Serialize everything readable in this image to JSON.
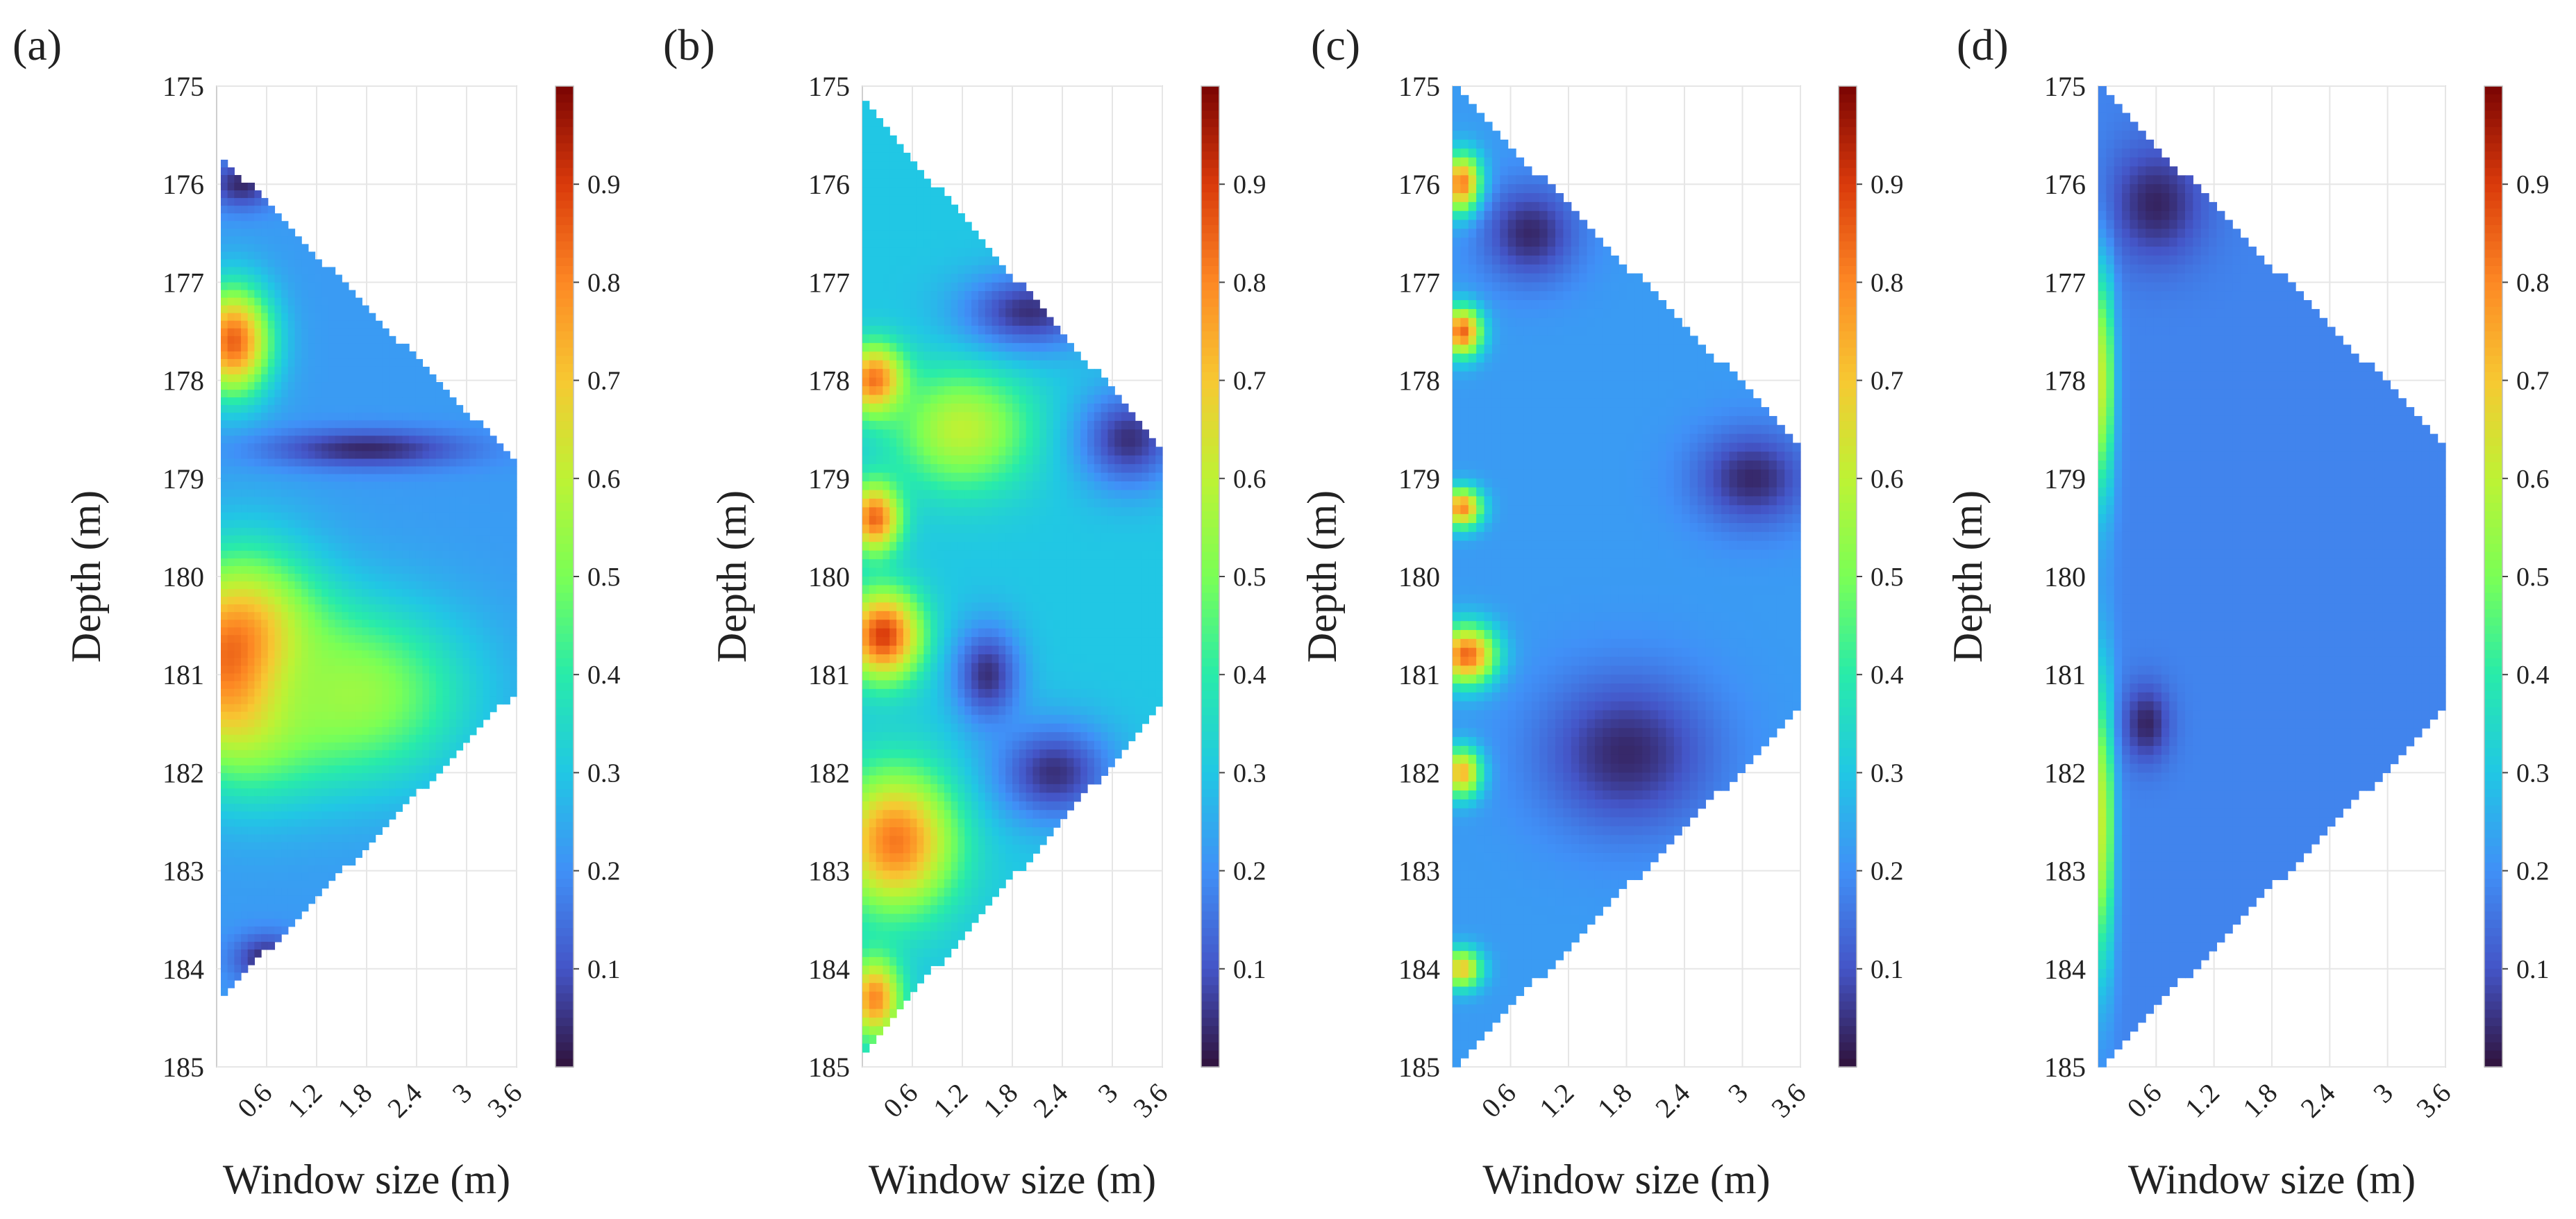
{
  "chart_data": [
    {
      "type": "heatmap",
      "panel_label": "(a)",
      "xlabel": "Window size (m)",
      "ylabel": "Depth (m)",
      "xlim": [
        0,
        3.6
      ],
      "ylim": [
        175,
        185
      ],
      "x_ticks": [
        "0.6",
        "1.2",
        "1.8",
        "2.4",
        "3",
        "3.6"
      ],
      "y_ticks": [
        "175",
        "176",
        "177",
        "178",
        "179",
        "180",
        "181",
        "182",
        "183",
        "184",
        "185"
      ],
      "colorbar_ticks": [
        "0.1",
        "0.2",
        "0.3",
        "0.4",
        "0.5",
        "0.6",
        "0.7",
        "0.8",
        "0.9"
      ],
      "colorbar_range": [
        0,
        1
      ],
      "domain": {
        "x_start": 0.05,
        "depth_top": 175.75,
        "depth_bottom": 184.35,
        "depth_mid": 180.0
      },
      "hotspots": [
        {
          "x": 0.2,
          "depth": 177.6,
          "value": 0.85,
          "sx": 0.45,
          "sd": 0.55
        },
        {
          "x": 0.3,
          "depth": 180.9,
          "value": 0.98,
          "sx": 0.9,
          "sd": 1.0
        },
        {
          "x": 1.6,
          "depth": 181.2,
          "value": 0.55,
          "sx": 1.4,
          "sd": 0.9
        }
      ],
      "base_value": 0.22,
      "low_zones": [
        {
          "x": 0.3,
          "depth": 176.0,
          "sx": 0.4,
          "sd": 0.25
        },
        {
          "x": 1.8,
          "depth": 178.7,
          "sx": 1.2,
          "sd": 0.2
        },
        {
          "x": 0.6,
          "depth": 183.9,
          "sx": 0.4,
          "sd": 0.25
        }
      ]
    },
    {
      "type": "heatmap",
      "panel_label": "(b)",
      "xlabel": "Window size (m)",
      "ylabel": "Depth (m)",
      "xlim": [
        0,
        3.6
      ],
      "ylim": [
        175,
        185
      ],
      "x_ticks": [
        "0.6",
        "1.2",
        "1.8",
        "2.4",
        "3",
        "3.6"
      ],
      "y_ticks": [
        "175",
        "176",
        "177",
        "178",
        "179",
        "180",
        "181",
        "182",
        "183",
        "184",
        "185"
      ],
      "colorbar_ticks": [
        "0.1",
        "0.2",
        "0.3",
        "0.4",
        "0.5",
        "0.6",
        "0.7",
        "0.8",
        "0.9"
      ],
      "colorbar_range": [
        0,
        1
      ],
      "domain": {
        "x_start": 0.0,
        "depth_top": 175.15,
        "depth_bottom": 184.85,
        "depth_mid": 180.0
      },
      "hotspots": [
        {
          "x": 0.15,
          "depth": 178.0,
          "value": 0.85,
          "sx": 0.35,
          "sd": 0.35
        },
        {
          "x": 0.15,
          "depth": 179.4,
          "value": 0.85,
          "sx": 0.3,
          "sd": 0.35
        },
        {
          "x": 0.25,
          "depth": 180.6,
          "value": 0.9,
          "sx": 0.45,
          "sd": 0.45
        },
        {
          "x": 0.4,
          "depth": 182.7,
          "value": 0.82,
          "sx": 0.7,
          "sd": 0.7
        },
        {
          "x": 0.15,
          "depth": 184.3,
          "value": 0.8,
          "sx": 0.3,
          "sd": 0.4
        },
        {
          "x": 1.2,
          "depth": 178.5,
          "value": 0.6,
          "sx": 0.8,
          "sd": 0.6
        }
      ],
      "base_value": 0.3,
      "low_zones": [
        {
          "x": 2.0,
          "depth": 177.3,
          "sx": 0.8,
          "sd": 0.4
        },
        {
          "x": 3.2,
          "depth": 178.6,
          "sx": 0.6,
          "sd": 0.5
        },
        {
          "x": 2.3,
          "depth": 182.0,
          "sx": 0.7,
          "sd": 0.5
        },
        {
          "x": 1.5,
          "depth": 181.0,
          "sx": 0.4,
          "sd": 0.5
        }
      ]
    },
    {
      "type": "heatmap",
      "panel_label": "(c)",
      "xlabel": "Window size (m)",
      "ylabel": "Depth (m)",
      "xlim": [
        0,
        3.6
      ],
      "ylim": [
        175,
        185
      ],
      "x_ticks": [
        "0.6",
        "1.2",
        "1.8",
        "2.4",
        "3",
        "3.6"
      ],
      "y_ticks": [
        "175",
        "176",
        "177",
        "178",
        "179",
        "180",
        "181",
        "182",
        "183",
        "184",
        "185"
      ],
      "colorbar_ticks": [
        "0.1",
        "0.2",
        "0.3",
        "0.4",
        "0.5",
        "0.6",
        "0.7",
        "0.8",
        "0.9"
      ],
      "colorbar_range": [
        0,
        1
      ],
      "domain": {
        "x_start": 0.0,
        "depth_top": 175.0,
        "depth_bottom": 185.0,
        "depth_mid": 180.0
      },
      "hotspots": [
        {
          "x": 0.1,
          "depth": 176.0,
          "value": 0.85,
          "sx": 0.2,
          "sd": 0.3
        },
        {
          "x": 0.1,
          "depth": 177.5,
          "value": 0.85,
          "sx": 0.2,
          "sd": 0.25
        },
        {
          "x": 0.1,
          "depth": 179.3,
          "value": 0.8,
          "sx": 0.2,
          "sd": 0.2
        },
        {
          "x": 0.15,
          "depth": 180.8,
          "value": 0.85,
          "sx": 0.3,
          "sd": 0.3
        },
        {
          "x": 0.1,
          "depth": 182.0,
          "value": 0.75,
          "sx": 0.2,
          "sd": 0.25
        },
        {
          "x": 0.1,
          "depth": 184.0,
          "value": 0.7,
          "sx": 0.2,
          "sd": 0.2
        }
      ],
      "base_value": 0.22,
      "low_zones": [
        {
          "x": 3.1,
          "depth": 179.0,
          "sx": 0.6,
          "sd": 0.5
        },
        {
          "x": 1.8,
          "depth": 181.8,
          "sx": 0.9,
          "sd": 0.8
        },
        {
          "x": 0.8,
          "depth": 176.5,
          "sx": 0.5,
          "sd": 0.5
        }
      ]
    },
    {
      "type": "heatmap",
      "panel_label": "(d)",
      "xlabel": "Window size (m)",
      "ylabel": "Depth (m)",
      "xlim": [
        0,
        3.6
      ],
      "ylim": [
        175,
        185
      ],
      "x_ticks": [
        "0.6",
        "1.2",
        "1.8",
        "2.4",
        "3",
        "3.6"
      ],
      "y_ticks": [
        "175",
        "176",
        "177",
        "178",
        "179",
        "180",
        "181",
        "182",
        "183",
        "184",
        "185"
      ],
      "colorbar_ticks": [
        "0.1",
        "0.2",
        "0.3",
        "0.4",
        "0.5",
        "0.6",
        "0.7",
        "0.8",
        "0.9"
      ],
      "colorbar_range": [
        0,
        1
      ],
      "domain": {
        "x_start": 0.0,
        "depth_top": 175.0,
        "depth_bottom": 185.0,
        "depth_mid": 180.0
      },
      "hotspots": [
        {
          "x": 0.05,
          "depth": 178.0,
          "value": 0.6,
          "sx": 0.12,
          "sd": 1.2
        },
        {
          "x": 0.05,
          "depth": 182.5,
          "value": 0.6,
          "sx": 0.12,
          "sd": 1.5
        }
      ],
      "base_value": 0.18,
      "low_zones": [
        {
          "x": 0.6,
          "depth": 176.2,
          "sx": 0.5,
          "sd": 0.6
        },
        {
          "x": 0.5,
          "depth": 181.5,
          "sx": 0.25,
          "sd": 0.4
        }
      ]
    }
  ]
}
